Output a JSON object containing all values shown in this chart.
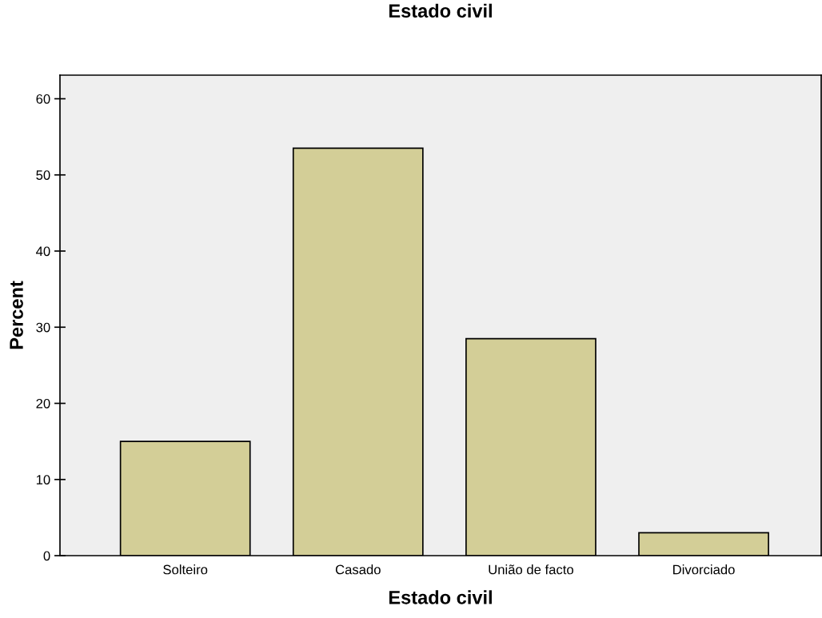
{
  "chart_data": {
    "type": "bar",
    "title": "Estado civil",
    "xlabel": "Estado civil",
    "ylabel": "Percent",
    "categories": [
      "Solteiro",
      "Casado",
      "União de facto",
      "Divorciado"
    ],
    "values": [
      15.0,
      53.5,
      28.5,
      3.0
    ],
    "color": "#d3ce97",
    "ylim": [
      0,
      63.1
    ],
    "yticks": [
      0,
      10,
      20,
      30,
      40,
      50,
      60
    ],
    "grid": false
  }
}
